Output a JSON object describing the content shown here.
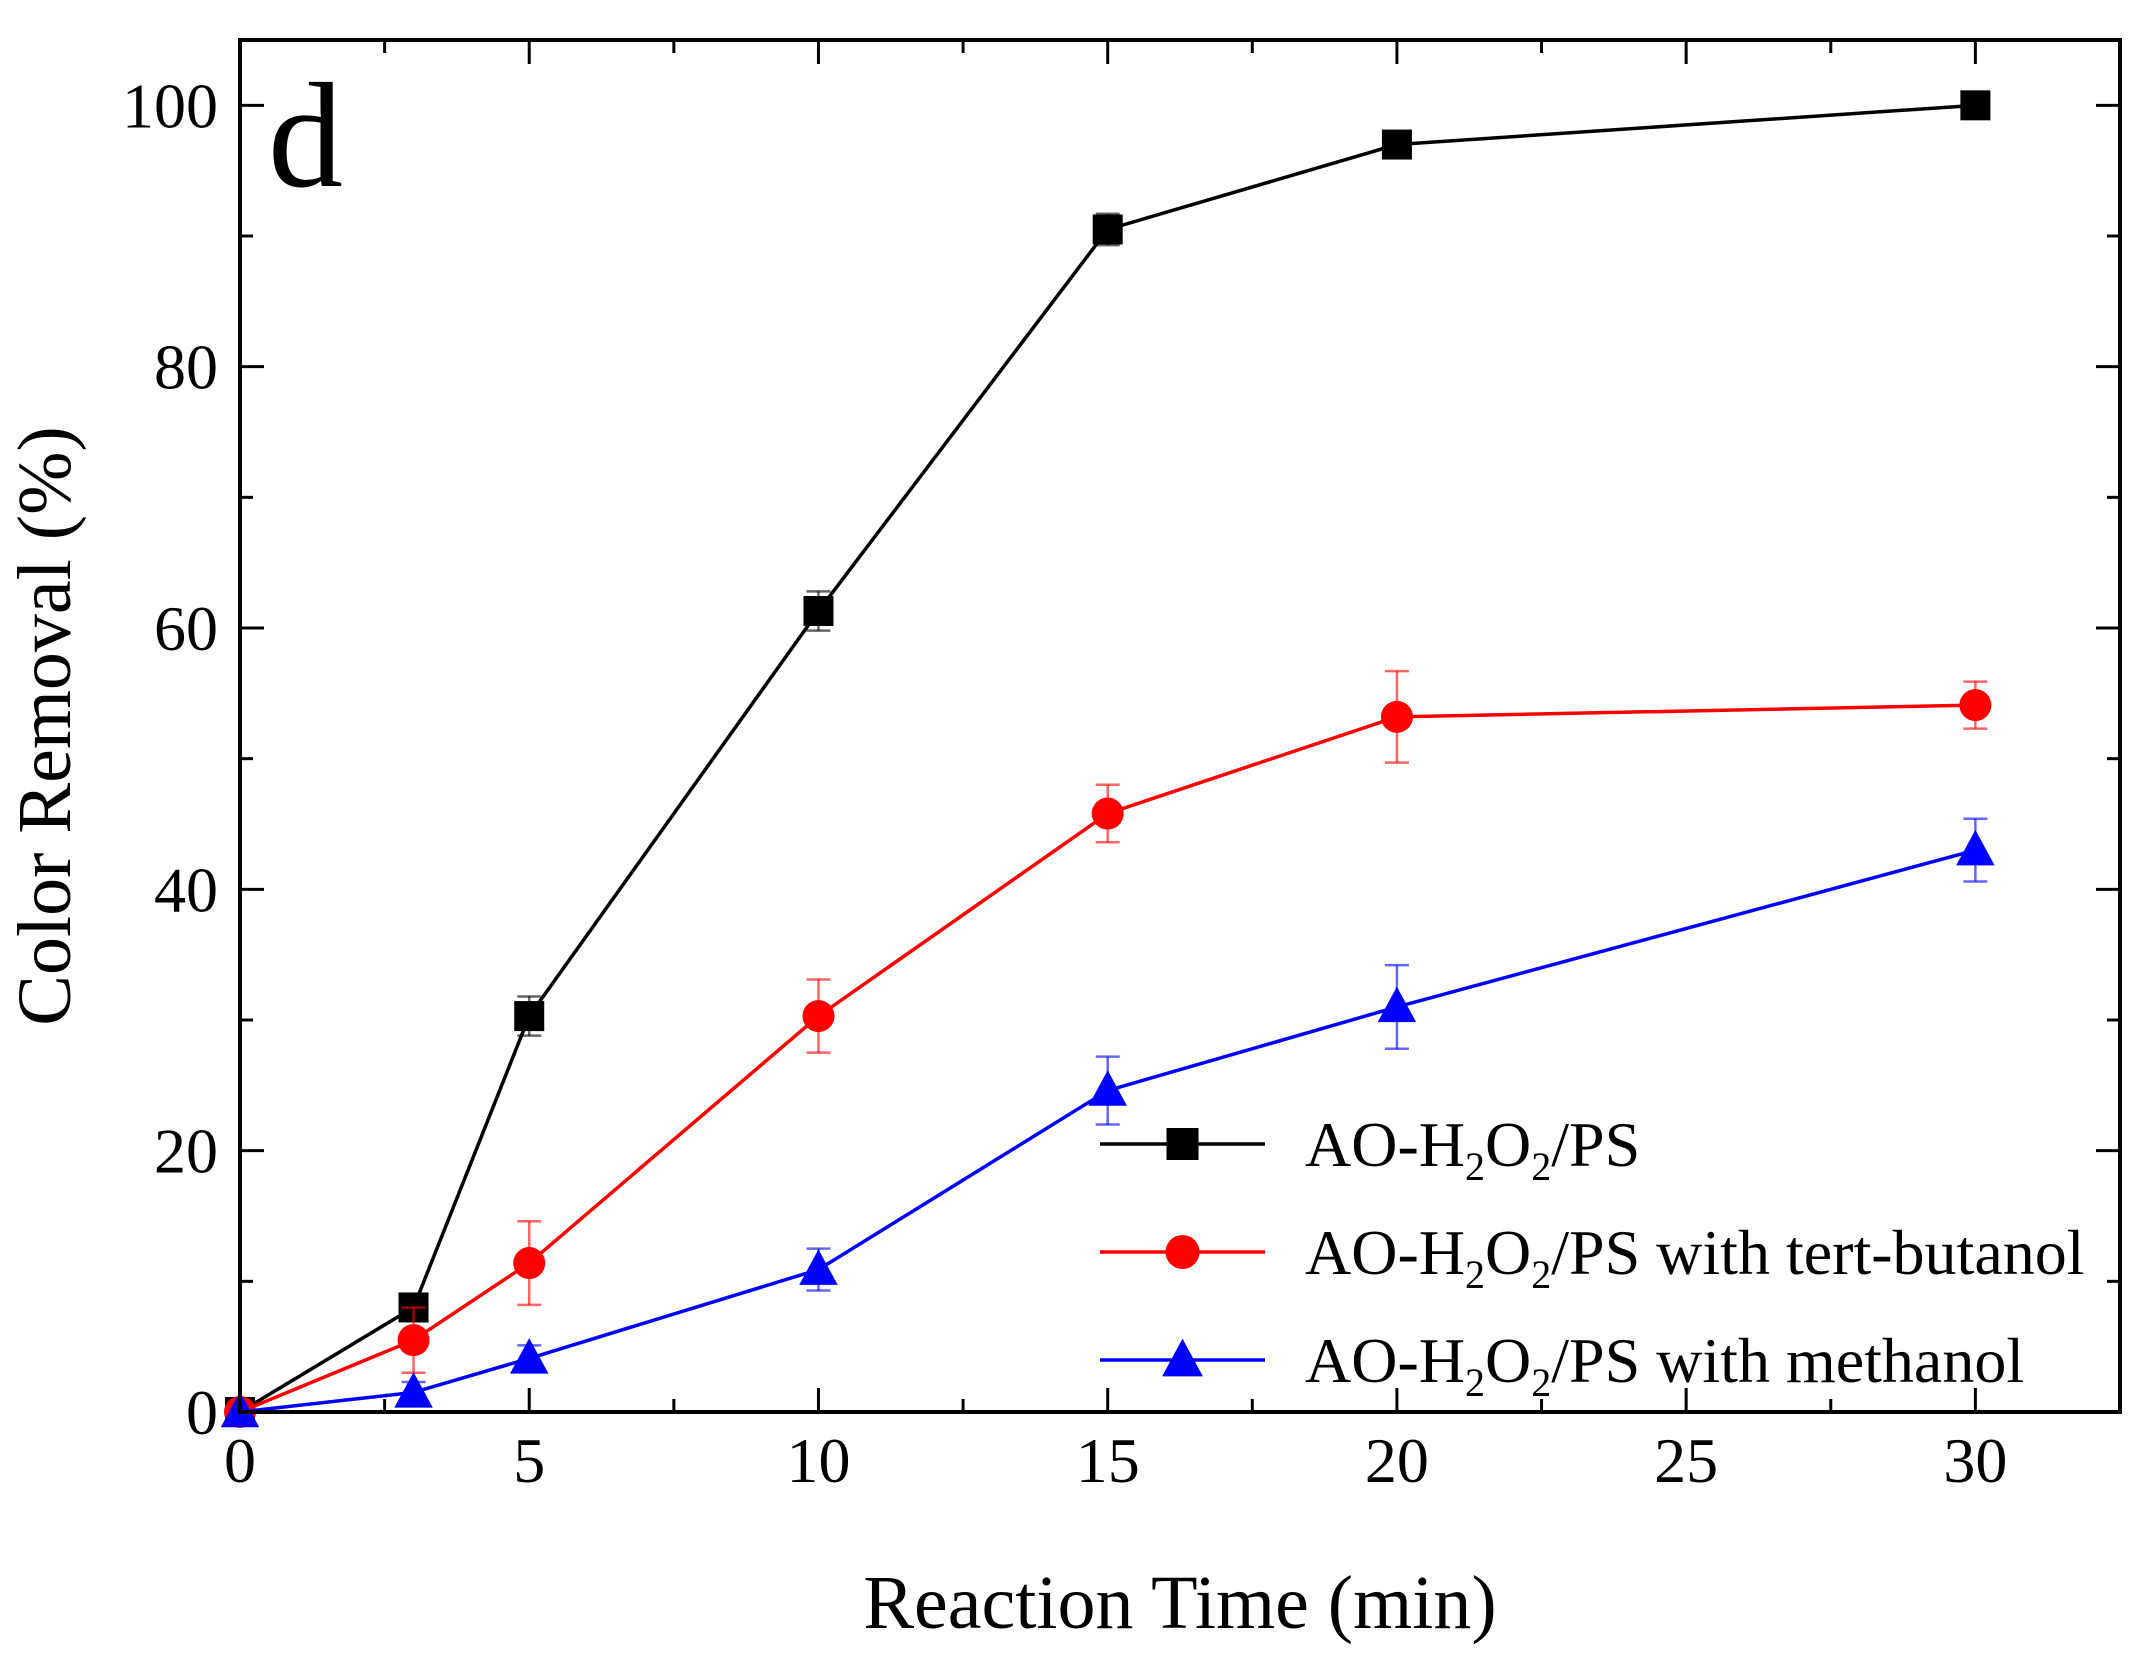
{
  "chart_data": {
    "type": "line",
    "panel_label": "d",
    "title": "",
    "xlabel": "Reaction Time (min)",
    "ylabel": "Color Removal (%)",
    "xlim": [
      0,
      32.5
    ],
    "ylim": [
      0,
      105
    ],
    "xticks": [
      0,
      5,
      10,
      15,
      20,
      25,
      30
    ],
    "xtick_labels": [
      "0",
      "5",
      "10",
      "15",
      "20",
      "25",
      "30"
    ],
    "yticks": [
      0,
      20,
      40,
      60,
      80,
      100
    ],
    "ytick_labels": [
      "0",
      "20",
      "40",
      "60",
      "80",
      "100"
    ],
    "grid": false,
    "legend_position": "bottom-right",
    "x": [
      0,
      3,
      5,
      10,
      15,
      20,
      30
    ],
    "series": [
      {
        "name": "AO-H2O2/PS",
        "legend": {
          "prefix": "AO-H",
          "sub1": "2",
          "mid": "O",
          "sub2": "2",
          "suffix": "/PS"
        },
        "color": "#000000",
        "marker": "square",
        "values": [
          0,
          8,
          30.3,
          61.3,
          90.5,
          97,
          100
        ],
        "errors": [
          0,
          0.8,
          1.5,
          1.5,
          1.2,
          0.8,
          0.6
        ]
      },
      {
        "name": "AO-H2O2/PS with tert-butanol",
        "legend": {
          "prefix": "AO-H",
          "sub1": "2",
          "mid": "O",
          "sub2": "2",
          "suffix": "/PS with tert-butanol"
        },
        "color": "#ff0000",
        "marker": "circle",
        "values": [
          0,
          5.5,
          11.4,
          30.3,
          45.8,
          53.2,
          54.1
        ],
        "errors": [
          0,
          2.5,
          3.2,
          2.8,
          2.2,
          3.5,
          1.8
        ]
      },
      {
        "name": "AO-H2O2/PS with methanol",
        "legend": {
          "prefix": "AO-H",
          "sub1": "2",
          "mid": "O",
          "sub2": "2",
          "suffix": "/PS with  methanol"
        },
        "color": "#0000ff",
        "marker": "triangle",
        "values": [
          0,
          1.5,
          4.1,
          10.9,
          24.6,
          31,
          43
        ],
        "errors": [
          0,
          0.8,
          1.0,
          1.6,
          2.6,
          3.2,
          2.4
        ]
      }
    ]
  }
}
